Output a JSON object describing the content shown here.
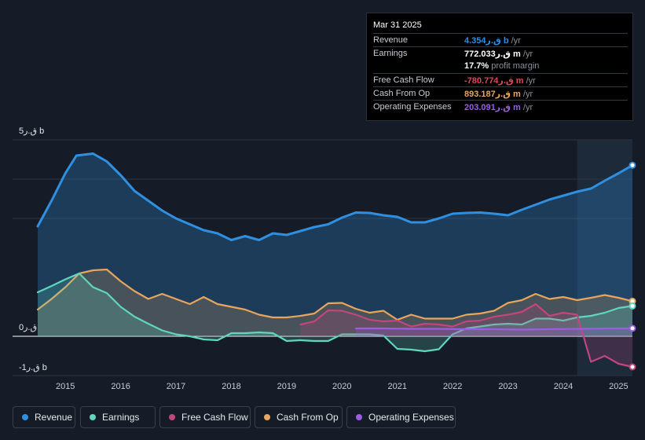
{
  "tooltip": {
    "date": "Mar 31 2025",
    "rows": [
      {
        "label": "Revenue",
        "value": "4.354ق.ر b",
        "suffix": "/yr",
        "color": "#2f8fe0"
      },
      {
        "label": "Earnings",
        "value": "772.033ق.ر m",
        "suffix": "/yr",
        "color": "#ffffff"
      },
      {
        "label": "",
        "value": "17.7%",
        "suffix": "profit margin",
        "color": "#ffffff"
      },
      {
        "label": "Free Cash Flow",
        "value": "-780.774ق.ر m",
        "suffix": "/yr",
        "color": "#e0465c"
      },
      {
        "label": "Cash From Op",
        "value": "893.187ق.ر m",
        "suffix": "/yr",
        "color": "#e8a65c"
      },
      {
        "label": "Operating Expenses",
        "value": "203.091ق.ر m",
        "suffix": "/yr",
        "color": "#9b5de5"
      }
    ]
  },
  "legend": [
    {
      "label": "Revenue",
      "color": "#2f8fe0"
    },
    {
      "label": "Earnings",
      "color": "#5fd6c0"
    },
    {
      "label": "Free Cash Flow",
      "color": "#c2457e"
    },
    {
      "label": "Cash From Op",
      "color": "#e8a65c"
    },
    {
      "label": "Operating Expenses",
      "color": "#9b5de5"
    }
  ],
  "chart_data": {
    "type": "area",
    "title": "",
    "ylabel_top": "5ق.ر b",
    "ylabel_zero": "0ق.ر",
    "ylabel_bottom": "-1ق.ر b",
    "ylim": [
      -1.0,
      5.0
    ],
    "x_ticks": [
      "2015",
      "2016",
      "2017",
      "2018",
      "2019",
      "2020",
      "2021",
      "2022",
      "2023",
      "2024",
      "2025"
    ],
    "x_tick_values": [
      2015,
      2016,
      2017,
      2018,
      2019,
      2020,
      2021,
      2022,
      2023,
      2024,
      2025
    ],
    "xlim": [
      2014.5,
      2025.25
    ],
    "highlight_from": 2024.25,
    "series": [
      {
        "name": "Revenue",
        "color": "#2f8fe0",
        "x": [
          2014.5,
          2014.75,
          2015.0,
          2015.2,
          2015.5,
          2015.75,
          2016.0,
          2016.25,
          2016.5,
          2016.75,
          2017.0,
          2017.25,
          2017.5,
          2017.75,
          2018.0,
          2018.25,
          2018.5,
          2018.75,
          2019.0,
          2019.25,
          2019.5,
          2019.75,
          2020.0,
          2020.25,
          2020.5,
          2020.75,
          2021.0,
          2021.25,
          2021.5,
          2021.75,
          2022.0,
          2022.25,
          2022.5,
          2022.75,
          2023.0,
          2023.25,
          2023.5,
          2023.75,
          2024.0,
          2024.25,
          2024.5,
          2024.75,
          2025.0,
          2025.25
        ],
        "values": [
          2.8,
          3.45,
          4.15,
          4.6,
          4.65,
          4.45,
          4.1,
          3.7,
          3.45,
          3.2,
          3.0,
          2.85,
          2.7,
          2.62,
          2.45,
          2.55,
          2.45,
          2.62,
          2.58,
          2.68,
          2.78,
          2.85,
          3.02,
          3.15,
          3.14,
          3.08,
          3.04,
          2.9,
          2.9,
          3.0,
          3.12,
          3.14,
          3.15,
          3.12,
          3.08,
          3.22,
          3.35,
          3.48,
          3.58,
          3.68,
          3.76,
          3.96,
          4.15,
          4.354
        ]
      },
      {
        "name": "Earnings",
        "color": "#5fd6c0",
        "x": [
          2014.5,
          2014.75,
          2015.0,
          2015.25,
          2015.5,
          2015.75,
          2016.0,
          2016.25,
          2016.5,
          2016.75,
          2017.0,
          2017.25,
          2017.5,
          2017.75,
          2018.0,
          2018.25,
          2018.5,
          2018.75,
          2019.0,
          2019.25,
          2019.5,
          2019.75,
          2020.0,
          2020.25,
          2020.5,
          2020.75,
          2021.0,
          2021.25,
          2021.5,
          2021.75,
          2022.0,
          2022.25,
          2022.5,
          2022.75,
          2023.0,
          2023.25,
          2023.5,
          2023.75,
          2024.0,
          2024.25,
          2024.5,
          2024.75,
          2025.0,
          2025.25
        ],
        "values": [
          1.12,
          1.28,
          1.45,
          1.6,
          1.25,
          1.1,
          0.75,
          0.5,
          0.32,
          0.15,
          0.05,
          0.0,
          -0.08,
          -0.1,
          0.08,
          0.08,
          0.1,
          0.08,
          -0.12,
          -0.1,
          -0.12,
          -0.12,
          0.05,
          0.05,
          0.05,
          0.02,
          -0.32,
          -0.34,
          -0.38,
          -0.33,
          0.05,
          0.2,
          0.25,
          0.3,
          0.32,
          0.3,
          0.45,
          0.45,
          0.4,
          0.48,
          0.52,
          0.6,
          0.72,
          0.772
        ]
      },
      {
        "name": "Free Cash Flow",
        "color": "#c2457e",
        "x": [
          2019.25,
          2019.5,
          2019.75,
          2020.0,
          2020.25,
          2020.5,
          2020.75,
          2021.0,
          2021.25,
          2021.5,
          2021.75,
          2022.0,
          2022.25,
          2022.5,
          2022.75,
          2023.0,
          2023.25,
          2023.5,
          2023.75,
          2024.0,
          2024.25,
          2024.5,
          2024.75,
          2025.0,
          2025.25
        ],
        "values": [
          0.3,
          0.38,
          0.66,
          0.65,
          0.55,
          0.42,
          0.38,
          0.4,
          0.25,
          0.32,
          0.3,
          0.25,
          0.38,
          0.4,
          0.5,
          0.55,
          0.62,
          0.82,
          0.52,
          0.6,
          0.55,
          -0.65,
          -0.5,
          -0.7,
          -0.78
        ]
      },
      {
        "name": "Cash From Op",
        "color": "#e8a65c",
        "x": [
          2014.5,
          2014.75,
          2015.0,
          2015.25,
          2015.5,
          2015.75,
          2016.0,
          2016.25,
          2016.5,
          2016.75,
          2017.0,
          2017.25,
          2017.5,
          2017.75,
          2018.0,
          2018.25,
          2018.5,
          2018.75,
          2019.0,
          2019.25,
          2019.5,
          2019.75,
          2020.0,
          2020.25,
          2020.5,
          2020.75,
          2021.0,
          2021.25,
          2021.5,
          2021.75,
          2022.0,
          2022.25,
          2022.5,
          2022.75,
          2023.0,
          2023.25,
          2023.5,
          2023.75,
          2024.0,
          2024.25,
          2024.5,
          2024.75,
          2025.0,
          2025.25
        ],
        "values": [
          0.68,
          0.95,
          1.25,
          1.6,
          1.68,
          1.7,
          1.4,
          1.15,
          0.95,
          1.08,
          0.95,
          0.82,
          1.0,
          0.82,
          0.75,
          0.68,
          0.55,
          0.48,
          0.48,
          0.52,
          0.58,
          0.84,
          0.85,
          0.7,
          0.6,
          0.65,
          0.42,
          0.55,
          0.45,
          0.45,
          0.45,
          0.55,
          0.58,
          0.65,
          0.85,
          0.92,
          1.08,
          0.95,
          1.0,
          0.92,
          0.98,
          1.05,
          0.98,
          0.893
        ]
      },
      {
        "name": "Operating Expenses",
        "color": "#9b5de5",
        "x": [
          2020.25,
          2020.75,
          2021.25,
          2021.75,
          2022.25,
          2022.75,
          2023.25,
          2023.75,
          2024.25,
          2024.75,
          2025.25
        ],
        "values": [
          0.2,
          0.2,
          0.19,
          0.19,
          0.18,
          0.18,
          0.17,
          0.18,
          0.19,
          0.2,
          0.203
        ]
      }
    ]
  }
}
